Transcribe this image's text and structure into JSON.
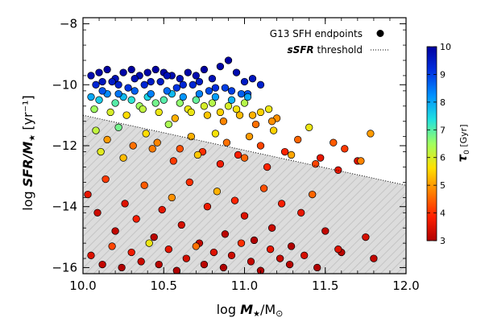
{
  "chart_data": {
    "type": "scatter",
    "xlim": [
      10.0,
      12.0
    ],
    "ylim": [
      -16.2,
      -7.8
    ],
    "x_ticks": [
      10.0,
      10.5,
      11.0,
      11.5,
      12.0
    ],
    "x_tick_labels": [
      "10.0",
      "10.5",
      "11.0",
      "11.5",
      "12.0"
    ],
    "y_ticks": [
      -16,
      -14,
      -12,
      -10,
      -8
    ],
    "y_tick_labels": [
      "−16",
      "−14",
      "−12",
      "−10",
      "−8"
    ],
    "xlabel": {
      "prefix": "log ",
      "main": "M",
      "sub": "★",
      "suffix": "/M",
      "sun": "⊙"
    },
    "ylabel": {
      "prefix": "log ",
      "main": "SFR/M",
      "sub": "★",
      "suffix": " [yr⁻¹]"
    },
    "threshold_line": {
      "x": [
        10.0,
        12.0
      ],
      "y": [
        -11.0,
        -13.3
      ]
    },
    "legend": {
      "entries": [
        {
          "label": "G13 SFH endpoints",
          "marker": "filled-circle"
        },
        {
          "label_bold": "sSFR",
          "label_rest": " threshold",
          "marker": "dotted-line"
        }
      ],
      "placement": "top-right"
    },
    "colorbar": {
      "label_main": "τ",
      "label_sub": "0",
      "label_unit": " [Gyr]",
      "min": 3,
      "max": 10,
      "ticks": [
        3,
        4,
        5,
        6,
        7,
        8,
        9,
        10
      ],
      "tick_labels": [
        "3",
        "4",
        "5",
        "6",
        "7",
        "8",
        "9",
        "10"
      ],
      "colormap": [
        "#b00000",
        "#ff2000",
        "#ff8000",
        "#ffe000",
        "#a0ff60",
        "#20e0e0",
        "#0090ff",
        "#0030e0",
        "#0000a0"
      ]
    },
    "colors": {
      "shade": "#dcdcdc",
      "hatch": "#c4c4c4",
      "marker_edge": "#000000"
    },
    "series": [
      {
        "x": [
          10.05,
          10.1,
          10.15,
          10.2,
          10.25,
          10.3,
          10.35,
          10.4,
          10.45,
          10.5,
          10.55,
          10.6,
          10.65,
          10.7,
          10.75,
          10.8,
          10.85,
          10.9,
          10.95,
          11.0,
          11.05,
          11.1,
          10.12,
          10.22,
          10.32,
          10.42,
          10.52,
          10.62,
          10.72,
          10.82,
          10.92,
          11.02,
          10.08,
          10.18,
          10.28,
          10.38,
          10.48,
          10.58,
          10.68,
          10.78,
          10.88,
          10.98
        ],
        "y": [
          -9.7,
          -9.6,
          -9.5,
          -9.8,
          -9.6,
          -9.5,
          -9.7,
          -9.6,
          -9.5,
          -9.6,
          -9.7,
          -9.8,
          -9.6,
          -9.7,
          -9.5,
          -9.8,
          -9.4,
          -9.2,
          -9.6,
          -9.9,
          -9.8,
          -10.0,
          -9.9,
          -10.0,
          -9.8,
          -9.9,
          -9.7,
          -10.0,
          -9.9,
          -10.1,
          -10.2,
          -10.3,
          -10.0,
          -9.9,
          -10.1,
          -10.0,
          -9.9,
          -10.1,
          -10.0,
          -10.2,
          -10.1,
          -10.3
        ],
        "c": [
          9.8,
          9.9,
          10,
          9.7,
          9.9,
          10,
          9.8,
          9.9,
          10,
          9.9,
          9.8,
          9.7,
          9.9,
          9.8,
          10,
          9.7,
          9.9,
          10,
          9.8,
          9.5,
          9.6,
          9.4,
          9.6,
          9.4,
          9.7,
          9.5,
          9.7,
          9.3,
          9.5,
          9.2,
          9.0,
          8.8,
          9.3,
          9.5,
          9.1,
          9.3,
          9.5,
          9.1,
          9.3,
          8.9,
          9.0,
          8.7
        ]
      },
      {
        "x": [
          10.05,
          10.1,
          10.15,
          10.2,
          10.25,
          10.3,
          10.35,
          10.4,
          10.45,
          10.5,
          10.55,
          10.6,
          10.65,
          10.7,
          10.75,
          10.8,
          10.85,
          10.9,
          10.95,
          11.0,
          11.05,
          11.1,
          11.15,
          11.2,
          10.07,
          10.17,
          10.27,
          10.37,
          10.47,
          10.57,
          10.67,
          10.77,
          10.87,
          10.97,
          11.07,
          11.17,
          10.12,
          10.22,
          10.32,
          10.42,
          10.52,
          10.62,
          10.72,
          10.82,
          10.92,
          11.02
        ],
        "y": [
          -10.4,
          -10.5,
          -10.3,
          -10.6,
          -10.4,
          -10.5,
          -10.7,
          -10.4,
          -10.6,
          -10.5,
          -10.3,
          -10.6,
          -10.8,
          -10.5,
          -10.7,
          -10.6,
          -10.9,
          -10.7,
          -10.8,
          -10.6,
          -11.0,
          -10.9,
          -10.8,
          -11.1,
          -10.8,
          -10.9,
          -11.0,
          -10.8,
          -10.9,
          -11.1,
          -10.9,
          -11.0,
          -11.2,
          -11.0,
          -11.3,
          -11.2,
          -10.2,
          -10.3,
          -10.2,
          -10.3,
          -10.2,
          -10.4,
          -10.3,
          -10.4,
          -10.5,
          -10.4
        ],
        "c": [
          8.0,
          7.6,
          8.3,
          7.0,
          7.8,
          7.3,
          6.5,
          7.5,
          6.8,
          7.0,
          7.8,
          6.6,
          5.8,
          6.9,
          6.0,
          6.3,
          5.5,
          6.0,
          5.7,
          6.3,
          5.2,
          5.5,
          5.8,
          4.9,
          6.5,
          6.0,
          5.6,
          6.2,
          5.8,
          5.2,
          5.8,
          5.4,
          4.8,
          5.3,
          4.6,
          4.9,
          8.8,
          8.5,
          8.7,
          8.4,
          8.6,
          8.2,
          8.4,
          8.1,
          7.9,
          8.0
        ]
      },
      {
        "x": [
          10.08,
          10.15,
          10.22,
          10.31,
          10.39,
          10.46,
          10.53,
          10.6,
          10.67,
          10.74,
          10.82,
          10.89,
          10.96,
          11.03,
          11.1,
          11.18,
          11.25,
          11.33,
          11.4,
          11.47,
          11.55,
          11.62,
          11.7,
          11.78,
          10.11,
          10.25,
          10.43,
          10.56,
          10.71,
          10.85,
          11.0,
          11.14,
          11.29,
          11.44,
          11.58,
          11.72
        ],
        "y": [
          -11.5,
          -11.8,
          -11.4,
          -12.0,
          -11.6,
          -11.9,
          -11.3,
          -12.1,
          -11.7,
          -12.2,
          -11.6,
          -11.9,
          -12.3,
          -11.7,
          -12.0,
          -11.5,
          -12.2,
          -11.8,
          -11.4,
          -12.4,
          -11.9,
          -12.1,
          -12.5,
          -11.6,
          -12.2,
          -12.4,
          -12.1,
          -12.5,
          -12.3,
          -12.6,
          -12.4,
          -12.7,
          -12.3,
          -12.6,
          -12.8,
          -12.5
        ],
        "c": [
          6.2,
          5.0,
          6.8,
          4.6,
          5.6,
          4.8,
          6.4,
          4.3,
          5.2,
          4.0,
          5.7,
          4.6,
          3.8,
          5.0,
          4.2,
          5.5,
          3.9,
          4.5,
          5.8,
          3.6,
          4.4,
          4.1,
          3.5,
          5.0,
          5.9,
          5.3,
          4.7,
          4.1,
          5.4,
          3.7,
          4.5,
          3.9,
          5.1,
          4.2,
          3.6,
          4.8
        ]
      },
      {
        "x": [
          10.03,
          10.09,
          10.14,
          10.2,
          10.26,
          10.33,
          10.38,
          10.44,
          10.49,
          10.55,
          10.61,
          10.66,
          10.72,
          10.77,
          10.83,
          10.88,
          10.94,
          11.0,
          11.06,
          11.12,
          11.17,
          11.23,
          11.29,
          11.35,
          11.42,
          11.5,
          11.6,
          11.75,
          10.05,
          10.12,
          10.18,
          10.24,
          10.3,
          10.36,
          10.41,
          10.47,
          10.53,
          10.58,
          10.64,
          10.7,
          10.75,
          10.81,
          10.87,
          10.92,
          10.98,
          11.04,
          11.1,
          11.16,
          11.22,
          11.28,
          11.37,
          11.45,
          11.58,
          11.8
        ],
        "y": [
          -13.6,
          -14.2,
          -13.1,
          -14.8,
          -13.9,
          -14.4,
          -13.3,
          -15.0,
          -14.1,
          -13.7,
          -14.6,
          -13.2,
          -15.2,
          -14.0,
          -13.5,
          -14.9,
          -13.8,
          -14.3,
          -15.1,
          -13.4,
          -14.7,
          -13.9,
          -15.3,
          -14.2,
          -13.6,
          -14.8,
          -15.5,
          -15.0,
          -15.6,
          -15.9,
          -15.3,
          -16.0,
          -15.5,
          -15.8,
          -15.2,
          -15.9,
          -15.4,
          -16.1,
          -15.7,
          -15.3,
          -15.9,
          -15.5,
          -16.0,
          -15.6,
          -15.2,
          -15.8,
          -16.1,
          -15.4,
          -15.7,
          -15.9,
          -15.6,
          -16.0,
          -15.4,
          -15.7
        ],
        "c": [
          3.6,
          3.3,
          4.1,
          3.2,
          3.5,
          3.8,
          4.4,
          3.1,
          3.6,
          4.9,
          3.4,
          4.0,
          3.2,
          3.7,
          5.2,
          3.1,
          3.9,
          3.5,
          3.0,
          4.3,
          3.3,
          3.8,
          3.0,
          3.6,
          4.5,
          3.2,
          3.1,
          3.4,
          3.5,
          3.2,
          4.2,
          3.0,
          3.7,
          3.3,
          5.8,
          3.1,
          3.6,
          3.0,
          3.4,
          4.6,
          3.1,
          3.5,
          3.0,
          3.3,
          4.0,
          3.2,
          3.0,
          3.6,
          3.3,
          3.1,
          3.4,
          3.0,
          3.5,
          3.2
        ]
      }
    ]
  }
}
